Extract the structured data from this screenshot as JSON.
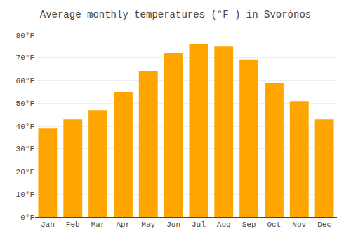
{
  "chart_data": {
    "type": "bar",
    "title": "Average monthly temperatures (°F ) in Svorónos",
    "categories": [
      "Jan",
      "Feb",
      "Mar",
      "Apr",
      "May",
      "Jun",
      "Jul",
      "Aug",
      "Sep",
      "Oct",
      "Nov",
      "Dec"
    ],
    "values": [
      39,
      43,
      47,
      55,
      64,
      72,
      76,
      75,
      69,
      59,
      51,
      43
    ],
    "color": "#FFA500",
    "ylim": [
      0,
      80
    ],
    "yticks": [
      {
        "value": 0,
        "label": "0°F"
      },
      {
        "value": 10,
        "label": "10°F"
      },
      {
        "value": 20,
        "label": "20°F"
      },
      {
        "value": 30,
        "label": "30°F"
      },
      {
        "value": 40,
        "label": "40°F"
      },
      {
        "value": 50,
        "label": "50°F"
      },
      {
        "value": 60,
        "label": "60°F"
      },
      {
        "value": 70,
        "label": "70°F"
      },
      {
        "value": 80,
        "label": "80°F"
      }
    ],
    "grid": true
  }
}
